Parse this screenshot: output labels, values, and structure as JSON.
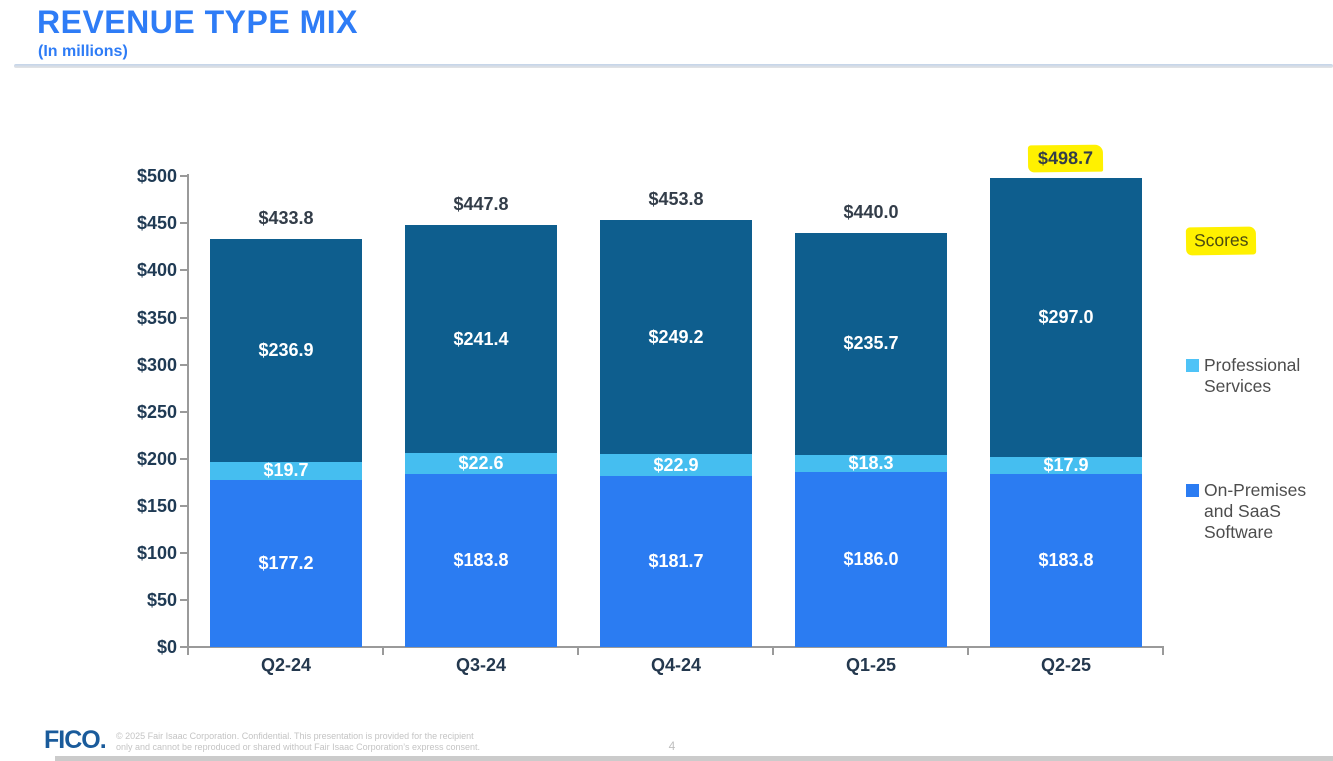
{
  "header": {
    "title": "REVENUE TYPE MIX",
    "subtitle": "(In millions)"
  },
  "chart_data": {
    "type": "bar",
    "subtype": "stacked-column",
    "categories": [
      "Q2-24",
      "Q3-24",
      "Q4-24",
      "Q1-25",
      "Q2-25"
    ],
    "series": [
      {
        "name": "On-Premises and SaaS Software",
        "color": "#2B7CF2",
        "values": [
          177.2,
          183.8,
          181.7,
          186.0,
          183.8
        ],
        "labels": [
          "$177.2",
          "$183.8",
          "$181.7",
          "$186.0",
          "$183.8"
        ]
      },
      {
        "name": "Professional Services",
        "color": "#45BEF0",
        "values": [
          19.7,
          22.6,
          22.9,
          18.3,
          17.9
        ],
        "labels": [
          "$19.7",
          "$22.6",
          "$22.9",
          "$18.3",
          "$17.9"
        ]
      },
      {
        "name": "Scores",
        "color": "#0E5E8E",
        "values": [
          236.9,
          241.4,
          249.2,
          235.7,
          297.0
        ],
        "labels": [
          "$236.9",
          "$241.4",
          "$249.2",
          "$235.7",
          "$297.0"
        ]
      }
    ],
    "totals": {
      "values": [
        433.8,
        447.8,
        453.8,
        440.0,
        498.7
      ],
      "labels": [
        "$433.8",
        "$447.8",
        "$453.8",
        "$440.0",
        "$498.7"
      ],
      "highlighted_index": 4,
      "highlight_color": "#FFF100"
    },
    "ylim": [
      0,
      500
    ],
    "y_tick_step": 50,
    "y_tick_labels": [
      "$0",
      "$50",
      "$100",
      "$150",
      "$200",
      "$250",
      "$300",
      "$350",
      "$400",
      "$450",
      "$500"
    ],
    "grid": false,
    "legend_position": "right",
    "legend": [
      {
        "label": "Scores",
        "swatch_color": "#0B5A1E",
        "highlighted": true
      },
      {
        "label": "Professional Services",
        "swatch_color": "#4EC3F7",
        "highlighted": false
      },
      {
        "label": "On-Premises and SaaS Software",
        "swatch_color": "#2B7CF2",
        "highlighted": false
      }
    ]
  },
  "colors": {
    "title_blue": "#2E7CF6",
    "axis_text": "#1F3A54",
    "total_text": "#333D49",
    "bar_label_text": "#FFFFFF",
    "legend_text": "#4D4D4D",
    "highlight_yellow": "#FFF100",
    "axis_line": "#9A9A9A"
  },
  "footer": {
    "logo_text": "FICO.",
    "copyright_line1": "© 2025 Fair Isaac Corporation. Confidential. This presentation is provided for the recipient",
    "copyright_line2": "only and cannot be reproduced or shared without Fair Isaac Corporation’s express consent.",
    "page_number": "4"
  }
}
